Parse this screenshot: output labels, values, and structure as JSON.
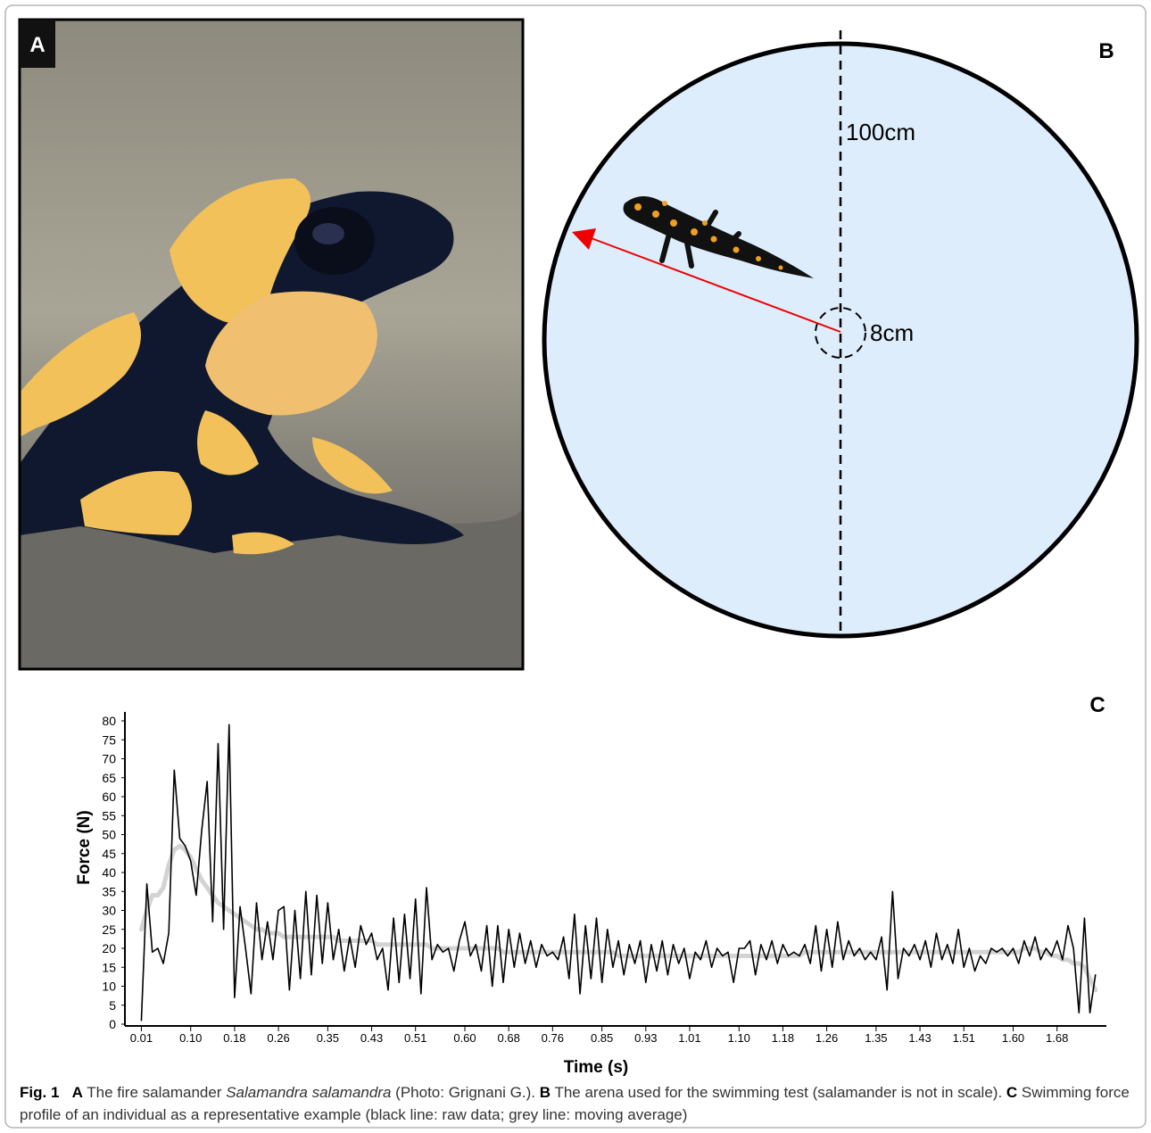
{
  "panels": {
    "a": {
      "label": "A"
    },
    "b": {
      "label": "B",
      "outer_label": "100cm",
      "inner_label": "8cm"
    },
    "c": {
      "label": "C"
    }
  },
  "chart_data": {
    "type": "line",
    "x_label": "Time (s)",
    "y_label": "Force (N)",
    "xlim": [
      -0.02,
      1.77
    ],
    "ylim": [
      0,
      80
    ],
    "xticks": [
      0.01,
      {
        "value": 0.1,
        "label": "0.10"
      },
      0.18,
      0.26,
      0.35,
      0.43,
      0.51,
      {
        "value": 0.6,
        "label": "0.60"
      },
      0.68,
      0.76,
      0.85,
      0.93,
      1.01,
      {
        "value": 1.1,
        "label": "1.10"
      },
      1.18,
      1.26,
      1.35,
      1.43,
      1.51,
      {
        "value": 1.6,
        "label": "1.60"
      },
      1.68
    ],
    "yticks": [
      0,
      5,
      10,
      15,
      20,
      25,
      30,
      35,
      40,
      45,
      50,
      55,
      60,
      65,
      70,
      75,
      80
    ],
    "x": [
      0.01,
      0.02,
      0.03,
      0.04,
      0.05,
      0.06,
      0.07,
      0.08,
      0.09,
      0.1,
      0.11,
      0.12,
      0.13,
      0.14,
      0.15,
      0.16,
      0.17,
      0.18,
      0.19,
      0.2,
      0.21,
      0.22,
      0.23,
      0.24,
      0.25,
      0.26,
      0.27,
      0.28,
      0.29,
      0.3,
      0.31,
      0.32,
      0.33,
      0.34,
      0.35,
      0.36,
      0.37,
      0.38,
      0.39,
      0.4,
      0.41,
      0.42,
      0.43,
      0.44,
      0.45,
      0.46,
      0.47,
      0.48,
      0.49,
      0.5,
      0.51,
      0.52,
      0.53,
      0.54,
      0.55,
      0.56,
      0.57,
      0.58,
      0.59,
      0.6,
      0.61,
      0.62,
      0.63,
      0.64,
      0.65,
      0.66,
      0.67,
      0.68,
      0.69,
      0.7,
      0.71,
      0.72,
      0.73,
      0.74,
      0.75,
      0.76,
      0.77,
      0.78,
      0.79,
      0.8,
      0.81,
      0.82,
      0.83,
      0.84,
      0.85,
      0.86,
      0.87,
      0.88,
      0.89,
      0.9,
      0.91,
      0.92,
      0.93,
      0.94,
      0.95,
      0.96,
      0.97,
      0.98,
      0.99,
      1.0,
      1.01,
      1.02,
      1.03,
      1.04,
      1.05,
      1.06,
      1.07,
      1.08,
      1.09,
      1.1,
      1.11,
      1.12,
      1.13,
      1.14,
      1.15,
      1.16,
      1.17,
      1.18,
      1.19,
      1.2,
      1.21,
      1.22,
      1.23,
      1.24,
      1.25,
      1.26,
      1.27,
      1.28,
      1.29,
      1.3,
      1.31,
      1.32,
      1.33,
      1.34,
      1.35,
      1.36,
      1.37,
      1.38,
      1.39,
      1.4,
      1.41,
      1.42,
      1.43,
      1.44,
      1.45,
      1.46,
      1.47,
      1.48,
      1.49,
      1.5,
      1.51,
      1.52,
      1.53,
      1.54,
      1.55,
      1.56,
      1.57,
      1.58,
      1.59,
      1.6,
      1.61,
      1.62,
      1.63,
      1.64,
      1.65,
      1.66,
      1.67,
      1.68,
      1.69,
      1.7,
      1.71,
      1.72,
      1.73,
      1.74,
      1.75
    ],
    "series": [
      {
        "color": "#d3d3d3",
        "values": [
          25,
          30,
          34,
          34,
          36,
          42,
          46,
          47,
          46,
          44,
          41,
          38,
          36,
          34,
          32,
          31,
          30,
          29,
          28,
          27,
          26,
          25,
          25,
          24,
          24,
          24,
          23,
          23,
          23,
          23,
          23,
          23,
          23,
          23,
          23,
          23,
          22,
          22,
          22,
          22,
          22,
          22,
          22,
          21,
          21,
          21,
          21,
          21,
          21,
          21,
          21,
          21,
          21,
          20,
          20,
          20,
          20,
          20,
          20,
          20,
          20,
          20,
          20,
          20,
          20,
          20,
          19,
          19,
          19,
          19,
          19,
          19,
          19,
          19,
          19,
          19,
          19,
          19,
          19,
          19,
          19,
          19,
          19,
          19,
          19,
          19,
          19,
          18,
          18,
          18,
          18,
          18,
          18,
          18,
          18,
          18,
          18,
          18,
          18,
          18,
          18,
          18,
          18,
          18,
          18,
          18,
          18,
          18,
          18,
          18,
          18,
          18,
          18,
          18,
          18,
          18,
          18,
          18,
          18,
          18,
          18,
          19,
          19,
          19,
          19,
          19,
          19,
          19,
          19,
          19,
          19,
          19,
          19,
          19,
          19,
          19,
          19,
          19,
          19,
          19,
          19,
          19,
          19,
          19,
          19,
          19,
          19,
          19,
          19,
          19,
          19,
          19,
          19,
          19,
          19,
          19,
          19,
          19,
          19,
          19,
          19,
          20,
          20,
          20,
          19,
          19,
          18,
          18,
          17,
          17,
          16,
          16,
          15,
          12,
          9
        ]
      },
      {
        "color": "#000000",
        "values": [
          1,
          37,
          19,
          20,
          16,
          24,
          67,
          49,
          47,
          43,
          34,
          51,
          64,
          27,
          74,
          25,
          79,
          7,
          31,
          20,
          8,
          32,
          17,
          27,
          17,
          30,
          31,
          9,
          30,
          12,
          35,
          13,
          34,
          16,
          32,
          17,
          25,
          14,
          23,
          15,
          26,
          21,
          24,
          17,
          20,
          9,
          28,
          11,
          29,
          12,
          33,
          8,
          36,
          17,
          21,
          19,
          20,
          14,
          22,
          27,
          18,
          21,
          14,
          26,
          10,
          26,
          11,
          25,
          15,
          24,
          16,
          22,
          15,
          21,
          18,
          19,
          17,
          23,
          12,
          29,
          8,
          26,
          12,
          28,
          11,
          25,
          15,
          22,
          13,
          21,
          16,
          22,
          11,
          21,
          14,
          22,
          13,
          21,
          16,
          20,
          12,
          19,
          17,
          22,
          15,
          20,
          18,
          19,
          11,
          20,
          20,
          22,
          13,
          21,
          17,
          22,
          16,
          21,
          18,
          19,
          18,
          21,
          16,
          26,
          14,
          25,
          15,
          27,
          17,
          22,
          18,
          20,
          17,
          19,
          17,
          23,
          9,
          35,
          12,
          20,
          18,
          21,
          17,
          22,
          15,
          24,
          17,
          21,
          16,
          25,
          15,
          20,
          14,
          18,
          16,
          20,
          19,
          20,
          18,
          20,
          16,
          22,
          18,
          23,
          17,
          20,
          18,
          22,
          17,
          26,
          20,
          3,
          28,
          3,
          13
        ]
      }
    ]
  },
  "caption": {
    "figure": "Fig. 1",
    "a_label": "A",
    "a_text": "The fire salamander",
    "a_species": "Salamandra salamandra",
    "a_credit": "(Photo: Grignani G.).",
    "b_label": "B",
    "b_text": "The arena used for the swimming test (salamander is not in scale).",
    "c_label": "C",
    "c_text": "Swimming force profile of an individual as a representative example (black line: raw data; grey line: moving average)"
  }
}
